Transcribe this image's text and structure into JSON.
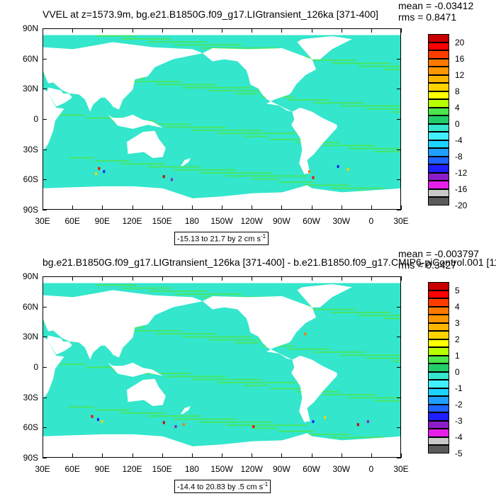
{
  "colors": {
    "ocean_bg": "#33e6cc",
    "ocean_green": "#4ce64c",
    "land": "#ffffff",
    "colorbar": [
      "#5a5a5a",
      "#c8c8c8",
      "#e61ee6",
      "#8c1ec8",
      "#1e1eff",
      "#1e64ff",
      "#1ea0ff",
      "#1ed2ff",
      "#41f0ff",
      "#33e6cc",
      "#22cc66",
      "#4ce64c",
      "#b4ff00",
      "#ffff00",
      "#ffd200",
      "#ffb400",
      "#ff9600",
      "#ff7800",
      "#ff3c00",
      "#ff0000",
      "#c80000"
    ]
  },
  "panels": [
    {
      "title": "VVEL at z=1573.9m, bg.e21.B1850G.f09_g17.LIGtransient_126ka [371-400]",
      "mean": "mean = -0.03412",
      "rms": "rms = 0.8471",
      "range": "-15.13 to 21.7 by 2 cm s",
      "range_exp": "-1",
      "colorbar_labels": [
        "20",
        "16",
        "12",
        "8",
        "4",
        "0",
        "-4",
        "-8",
        "-12",
        "-16",
        "-20"
      ]
    },
    {
      "title": "bg.e21.B1850G.f09_g17.LIGtransient_126ka [371-400] - b.e21.B1850.f09_g17.CMIP6-piControl.001 [11",
      "mean": "mean = -0.003797",
      "rms": "rms = 0.3427",
      "range": "-14.4 to 20.83 by .5 cm s",
      "range_exp": "-1",
      "colorbar_labels": [
        "5",
        "4",
        "3",
        "2",
        "1",
        "0",
        "-1",
        "-2",
        "-3",
        "-4",
        "-5"
      ]
    }
  ],
  "y_ticks": [
    "90N",
    "60N",
    "30N",
    "0",
    "30S",
    "60S",
    "90S"
  ],
  "x_ticks": [
    "30E",
    "60E",
    "90E",
    "120E",
    "150E",
    "180",
    "150W",
    "120W",
    "90W",
    "60W",
    "30W",
    "0",
    "30E"
  ],
  "chart_data": [
    {
      "type": "heatmap",
      "title": "VVEL at z=1573.9m, bg.e21.B1850G.f09_g17.LIGtransient_126ka [371-400]",
      "xlabel": "",
      "ylabel": "",
      "x_ticks": [
        "30E",
        "60E",
        "90E",
        "120E",
        "150E",
        "180",
        "150W",
        "120W",
        "90W",
        "60W",
        "30W",
        "0",
        "30E"
      ],
      "y_ticks": [
        "90N",
        "60N",
        "30N",
        "0",
        "30S",
        "60S",
        "90S"
      ],
      "colorbar": {
        "min": -20,
        "max": 20,
        "step": 2,
        "labels": [
          "-20",
          "-16",
          "-12",
          "-8",
          "-4",
          "0",
          "4",
          "8",
          "12",
          "16",
          "20"
        ]
      },
      "stats": {
        "mean": -0.03412,
        "rms": 0.8471,
        "min": -15.13,
        "max": 21.7,
        "units": "cm s-1"
      }
    },
    {
      "type": "heatmap",
      "title": "bg.e21.B1850G.f09_g17.LIGtransient_126ka [371-400] - b.e21.B1850.f09_g17.CMIP6-piControl.001 [11",
      "xlabel": "",
      "ylabel": "",
      "x_ticks": [
        "30E",
        "60E",
        "90E",
        "120E",
        "150E",
        "180",
        "150W",
        "120W",
        "90W",
        "60W",
        "30W",
        "0",
        "30E"
      ],
      "y_ticks": [
        "90N",
        "60N",
        "30N",
        "0",
        "30S",
        "60S",
        "90S"
      ],
      "colorbar": {
        "min": -5,
        "max": 5,
        "step": 0.5,
        "labels": [
          "-5",
          "-4",
          "-3",
          "-2",
          "-1",
          "0",
          "1",
          "2",
          "3",
          "4",
          "5"
        ]
      },
      "stats": {
        "mean": -0.003797,
        "rms": 0.3427,
        "min": -14.4,
        "max": 20.83,
        "units": "cm s-1"
      }
    }
  ]
}
